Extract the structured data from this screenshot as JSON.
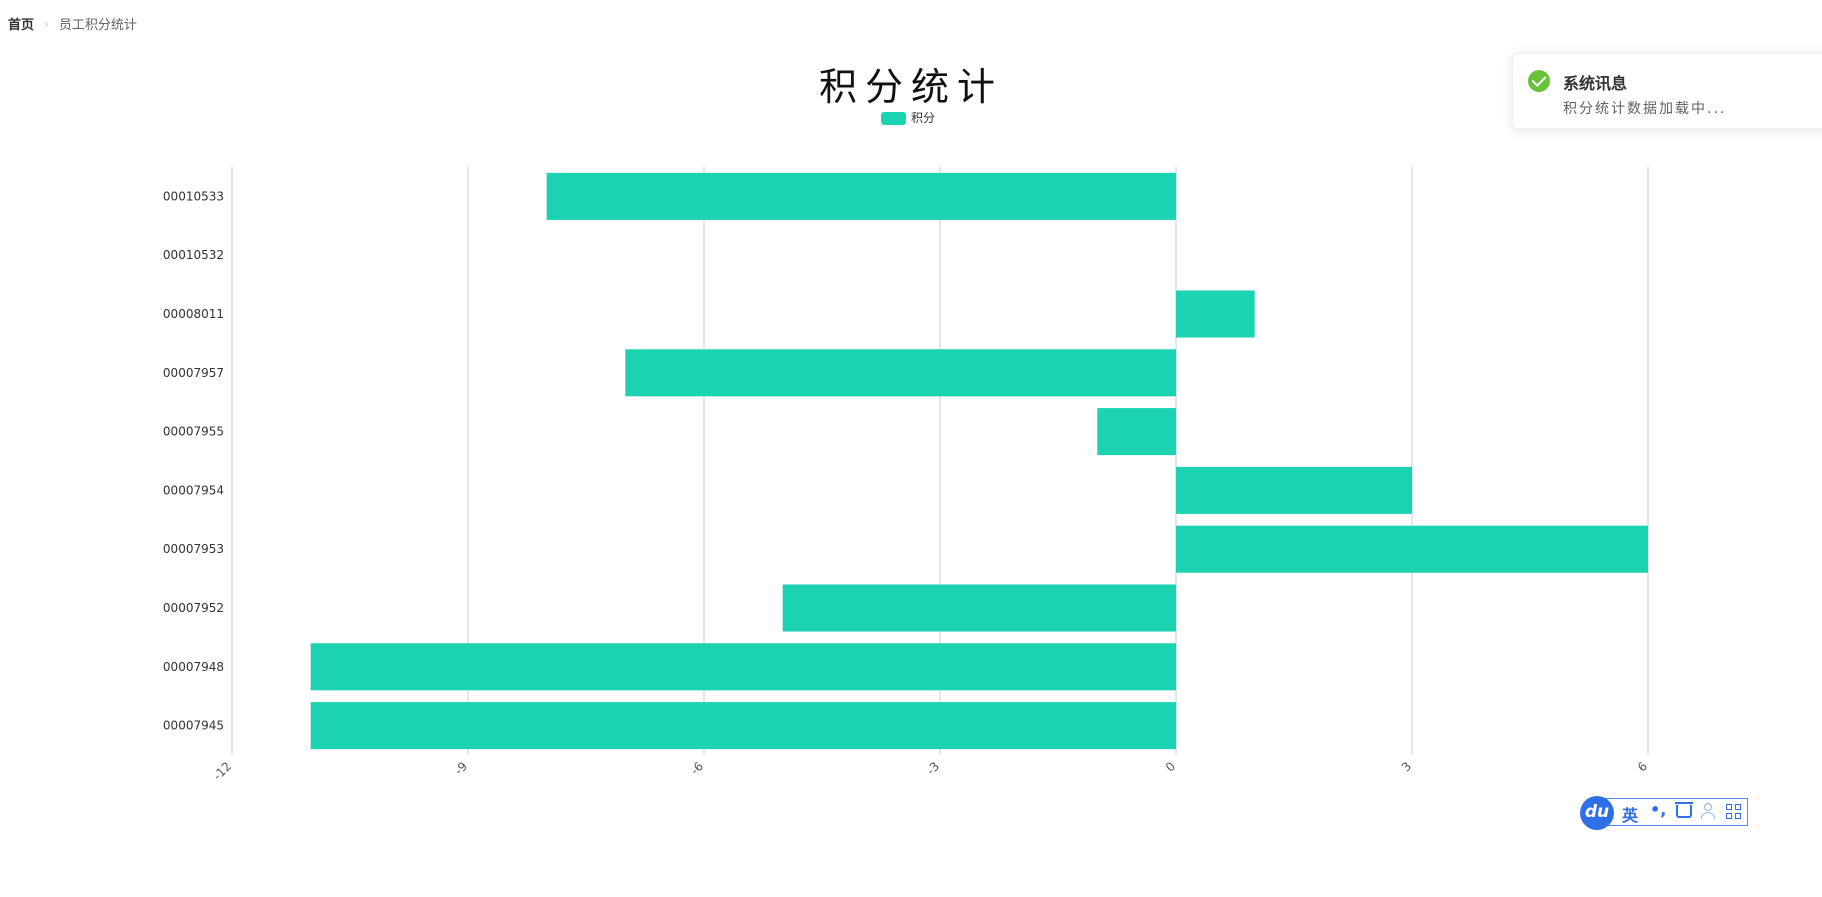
{
  "breadcrumb": {
    "home": "首页",
    "current": "员工积分统计"
  },
  "toast": {
    "title": "系统讯息",
    "message": "积分统计数据加载中..."
  },
  "ime": {
    "logo": "du",
    "lang": "英",
    "punct": "•,",
    "icons": [
      "cup-icon",
      "user-icon",
      "grid-icon"
    ]
  },
  "chart_data": {
    "type": "bar",
    "orientation": "horizontal",
    "title": "积分统计",
    "legend": {
      "entries": [
        "积分"
      ],
      "placement": "top-center"
    },
    "categories": [
      "00010533",
      "00010532",
      "00008011",
      "00007957",
      "00007955",
      "00007954",
      "00007953",
      "00007952",
      "00007948",
      "00007945"
    ],
    "series": [
      {
        "name": "积分",
        "values": [
          -8,
          0,
          1,
          -7,
          -1,
          3,
          6,
          -5,
          -11,
          -11
        ]
      }
    ],
    "xlim": [
      -12,
      6
    ],
    "xticks": [
      "-12",
      "-9",
      "-6",
      "-3",
      "0",
      "3",
      "6"
    ],
    "grid": true,
    "color": "#1bd3b0"
  }
}
